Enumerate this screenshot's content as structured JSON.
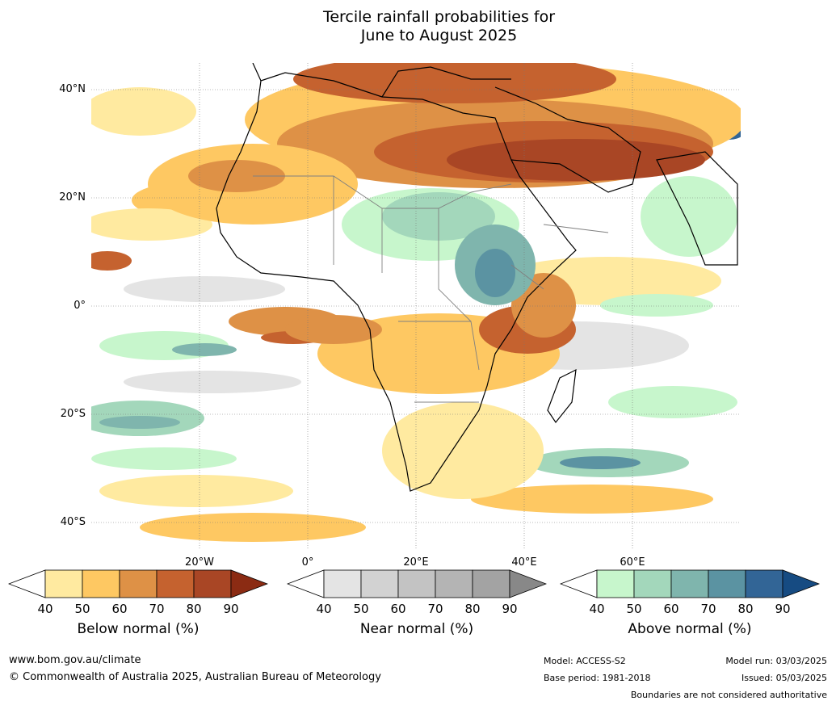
{
  "title_line1": "Tercile rainfall probabilities for",
  "title_line2": "June to August 2025",
  "map": {
    "lat_labels": [
      "40°N",
      "20°N",
      "0°",
      "20°S",
      "40°S"
    ],
    "lon_labels": [
      "20°W",
      "0°",
      "20°E",
      "40°E",
      "60°E"
    ]
  },
  "legends": [
    {
      "title": "Below normal (%)",
      "ticks": [
        "40",
        "50",
        "60",
        "70",
        "80",
        "90"
      ],
      "colors": [
        "#ffffff",
        "#ffeaa0",
        "#fec862",
        "#de9146",
        "#c5622f",
        "#a94625",
        "#8b2b13"
      ]
    },
    {
      "title": "Near normal (%)",
      "ticks": [
        "40",
        "50",
        "60",
        "70",
        "80",
        "90"
      ],
      "colors": [
        "#ffffff",
        "#e4e4e4",
        "#d2d2d2",
        "#c3c3c3",
        "#b4b4b4",
        "#a3a3a3",
        "#888888"
      ]
    },
    {
      "title": "Above normal (%)",
      "ticks": [
        "40",
        "50",
        "60",
        "70",
        "80",
        "90"
      ],
      "colors": [
        "#ffffff",
        "#c7f6cc",
        "#a3d7bb",
        "#7fb5ad",
        "#5b93a2",
        "#326596",
        "#164b82"
      ]
    }
  ],
  "footer": {
    "website": "www.bom.gov.au/climate",
    "copyright": "© Commonwealth of Australia 2025, Australian Bureau of Meteorology",
    "model": "Model: ACCESS-S2",
    "base_period": "Base period: 1981-2018",
    "model_run": "Model run: 03/03/2025",
    "issued": "Issued: 05/03/2025",
    "disclaimer": "Boundaries are not considered authoritative"
  }
}
